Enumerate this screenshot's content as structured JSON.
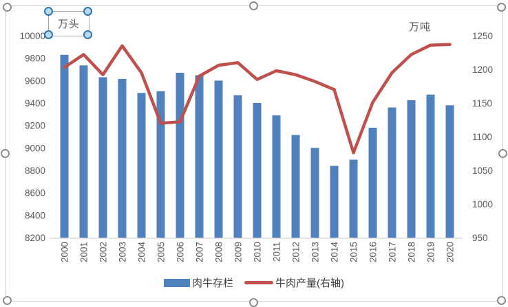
{
  "chart": {
    "unit_left_label": "万头",
    "unit_right_label": "万吨"
  },
  "chart_data": {
    "type": "bar+line combo",
    "title": "",
    "categories": [
      "2000",
      "2001",
      "2002",
      "2003",
      "2004",
      "2005",
      "2006",
      "2007",
      "2008",
      "2009",
      "2010",
      "2011",
      "2012",
      "2013",
      "2014",
      "2015",
      "2016",
      "2017",
      "2018",
      "2019",
      "2020"
    ],
    "series": [
      {
        "name": "肉牛存栏",
        "type": "bar",
        "axis": "left",
        "unit": "万头",
        "color": "#4F81BD",
        "values": [
          9830,
          9735,
          9630,
          9615,
          9490,
          9505,
          9670,
          9648,
          9600,
          9470,
          9400,
          9290,
          9115,
          9000,
          8840,
          8895,
          9180,
          9360,
          9425,
          9475,
          9380
        ]
      },
      {
        "name": "牛肉产量(右轴)",
        "type": "line",
        "axis": "right",
        "unit": "万吨",
        "color": "#C0504D",
        "values": [
          1203,
          1222,
          1192,
          1235,
          1195,
          1120,
          1122,
          1190,
          1206,
          1210,
          1185,
          1198,
          1192,
          1182,
          1170,
          1076,
          1151,
          1195,
          1222,
          1236,
          1237
        ]
      }
    ],
    "left_axis": {
      "label": "万头",
      "min": 8200,
      "max": 10000,
      "step": 200,
      "ticks": [
        10000,
        9800,
        9600,
        9400,
        9200,
        9000,
        8800,
        8600,
        8400,
        8200
      ]
    },
    "right_axis": {
      "label": "万吨",
      "min": 950,
      "max": 1250,
      "step": 50,
      "ticks": [
        1250,
        1200,
        1150,
        1100,
        1050,
        1000,
        950
      ]
    },
    "x_axis": {
      "tick_rotation_deg": -90
    },
    "grid": "off",
    "legend_position": "bottom"
  },
  "colors": {
    "bar": "#4F81BD",
    "line": "#C0504D",
    "axis_text": "#595959",
    "legend_text": "#404040",
    "frame_border": "#C9C9C9",
    "baseline": "#D9D9D9",
    "handle_stroke": "#8C8C8C",
    "textbox_handle_fill": "#BDD7EE",
    "textbox_handle_stroke": "#2E75B6"
  }
}
